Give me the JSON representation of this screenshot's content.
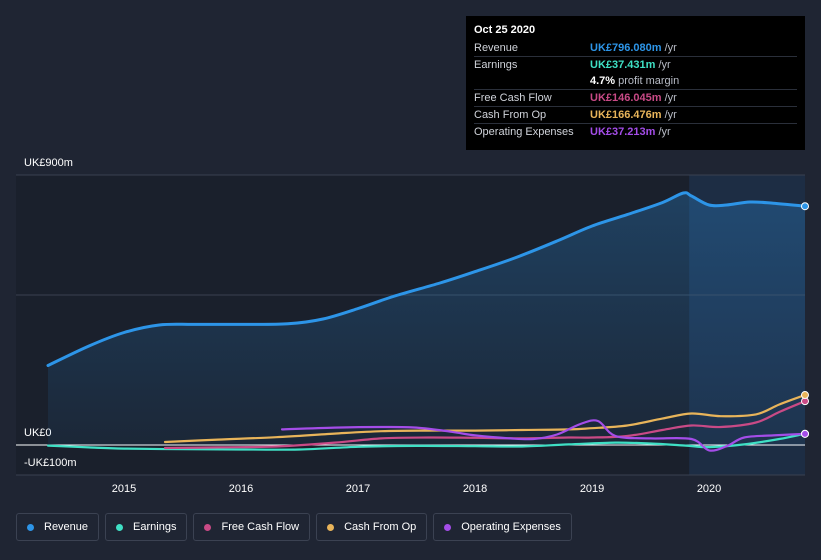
{
  "chart_data": {
    "type": "line",
    "title": "",
    "xlabel": "",
    "ylabel": "",
    "y_top_label": "UK£900m",
    "y_zero_label": "UK£0",
    "y_neg_label": "-UK£100m",
    "ylim": [
      -100,
      900
    ],
    "x_ticks": [
      "2015",
      "2016",
      "2017",
      "2018",
      "2019",
      "2020"
    ],
    "x_tick_values": [
      2015,
      2016,
      2017,
      2018,
      2019,
      2020
    ],
    "xlim": [
      2014.35,
      2020.82
    ],
    "highlight_start": 2019.83,
    "series": [
      {
        "name": "Revenue",
        "color": "#2d95e8",
        "area": true,
        "points": [
          [
            2014.35,
            265
          ],
          [
            2014.7,
            330
          ],
          [
            2015.0,
            375
          ],
          [
            2015.3,
            400
          ],
          [
            2015.6,
            402
          ],
          [
            2016.0,
            402
          ],
          [
            2016.4,
            404
          ],
          [
            2016.7,
            420
          ],
          [
            2017.0,
            455
          ],
          [
            2017.3,
            495
          ],
          [
            2017.7,
            540
          ],
          [
            2018.0,
            578
          ],
          [
            2018.35,
            625
          ],
          [
            2018.7,
            680
          ],
          [
            2019.0,
            730
          ],
          [
            2019.3,
            768
          ],
          [
            2019.6,
            808
          ],
          [
            2019.78,
            840
          ],
          [
            2019.85,
            830
          ],
          [
            2020.0,
            800
          ],
          [
            2020.15,
            800
          ],
          [
            2020.35,
            810
          ],
          [
            2020.55,
            806
          ],
          [
            2020.82,
            796
          ]
        ]
      },
      {
        "name": "Earnings",
        "color": "#3fe0c5",
        "area": false,
        "points": [
          [
            2014.35,
            -2
          ],
          [
            2014.7,
            -8
          ],
          [
            2015.0,
            -12
          ],
          [
            2015.5,
            -14
          ],
          [
            2016.0,
            -15
          ],
          [
            2016.5,
            -15
          ],
          [
            2017.0,
            -6
          ],
          [
            2017.5,
            -3
          ],
          [
            2018.0,
            -4
          ],
          [
            2018.4,
            -5
          ],
          [
            2018.8,
            2
          ],
          [
            2019.2,
            8
          ],
          [
            2019.5,
            5
          ],
          [
            2019.8,
            -2
          ],
          [
            2020.0,
            -7
          ],
          [
            2020.3,
            2
          ],
          [
            2020.6,
            20
          ],
          [
            2020.82,
            37.431
          ]
        ]
      },
      {
        "name": "Free Cash Flow",
        "color": "#c94a86",
        "area": false,
        "points": [
          [
            2015.35,
            -10
          ],
          [
            2015.8,
            -8
          ],
          [
            2016.3,
            -5
          ],
          [
            2016.8,
            8
          ],
          [
            2017.2,
            22
          ],
          [
            2017.6,
            25
          ],
          [
            2018.0,
            24
          ],
          [
            2018.4,
            22
          ],
          [
            2018.8,
            25
          ],
          [
            2019.0,
            25
          ],
          [
            2019.3,
            30
          ],
          [
            2019.6,
            50
          ],
          [
            2019.85,
            65
          ],
          [
            2020.1,
            60
          ],
          [
            2020.4,
            75
          ],
          [
            2020.6,
            110
          ],
          [
            2020.82,
            146.045
          ]
        ]
      },
      {
        "name": "Cash From Op",
        "color": "#e8b45a",
        "area": false,
        "points": [
          [
            2015.35,
            10
          ],
          [
            2015.8,
            18
          ],
          [
            2016.3,
            26
          ],
          [
            2016.8,
            38
          ],
          [
            2017.2,
            46
          ],
          [
            2017.6,
            48
          ],
          [
            2018.0,
            48
          ],
          [
            2018.4,
            50
          ],
          [
            2018.8,
            52
          ],
          [
            2019.0,
            56
          ],
          [
            2019.3,
            65
          ],
          [
            2019.6,
            88
          ],
          [
            2019.85,
            105
          ],
          [
            2020.1,
            96
          ],
          [
            2020.4,
            102
          ],
          [
            2020.6,
            135
          ],
          [
            2020.82,
            166.476
          ]
        ]
      },
      {
        "name": "Operating Expenses",
        "color": "#a44de8",
        "area": false,
        "points": [
          [
            2016.35,
            52
          ],
          [
            2016.8,
            58
          ],
          [
            2017.2,
            60
          ],
          [
            2017.5,
            58
          ],
          [
            2017.8,
            44
          ],
          [
            2018.0,
            32
          ],
          [
            2018.3,
            22
          ],
          [
            2018.5,
            20
          ],
          [
            2018.7,
            35
          ],
          [
            2018.9,
            70
          ],
          [
            2019.05,
            80
          ],
          [
            2019.2,
            30
          ],
          [
            2019.5,
            22
          ],
          [
            2019.85,
            20
          ],
          [
            2020.0,
            -18
          ],
          [
            2020.15,
            -4
          ],
          [
            2020.3,
            25
          ],
          [
            2020.55,
            32
          ],
          [
            2020.82,
            37.213
          ]
        ]
      }
    ]
  },
  "tooltip": {
    "date": "Oct 25 2020",
    "rows": [
      {
        "label": "Revenue",
        "value": "UK£796.080m",
        "unit": "/yr",
        "color": "#2d95e8"
      },
      {
        "label": "Earnings",
        "value": "UK£37.431m",
        "unit": "/yr",
        "color": "#3fe0c5"
      },
      {
        "label": "",
        "value": "4.7%",
        "unit": "profit margin",
        "color": "#ffffff"
      },
      {
        "label": "Free Cash Flow",
        "value": "UK£146.045m",
        "unit": "/yr",
        "color": "#c94a86"
      },
      {
        "label": "Cash From Op",
        "value": "UK£166.476m",
        "unit": "/yr",
        "color": "#e8b45a"
      },
      {
        "label": "Operating Expenses",
        "value": "UK£37.213m",
        "unit": "/yr",
        "color": "#a44de8"
      }
    ]
  },
  "legend": [
    {
      "label": "Revenue",
      "color": "#2d95e8"
    },
    {
      "label": "Earnings",
      "color": "#3fe0c5"
    },
    {
      "label": "Free Cash Flow",
      "color": "#c94a86"
    },
    {
      "label": "Cash From Op",
      "color": "#e8b45a"
    },
    {
      "label": "Operating Expenses",
      "color": "#a44de8"
    }
  ]
}
